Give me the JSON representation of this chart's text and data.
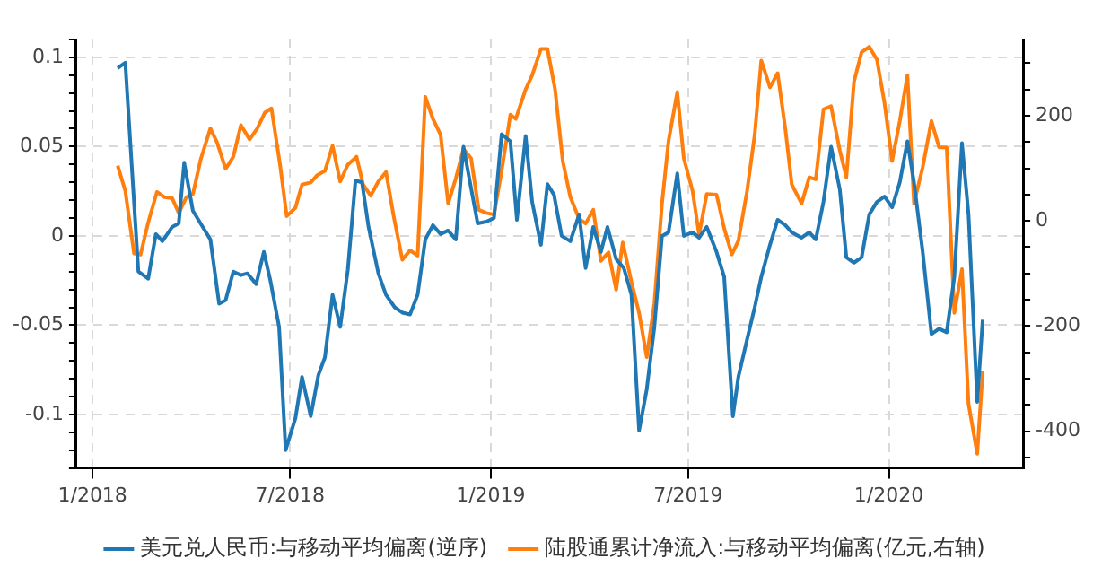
{
  "chart_data": {
    "type": "line",
    "line_style": "solid",
    "grid": true,
    "legend": "bottom",
    "xlim": [
      "2017-12-17",
      "2020-05-03"
    ],
    "xticks": [
      {
        "value": "2018-01-01",
        "label": "1/2018"
      },
      {
        "value": "2018-07-01",
        "label": "7/2018"
      },
      {
        "value": "2019-01-01",
        "label": "1/2019"
      },
      {
        "value": "2019-07-01",
        "label": "7/2019"
      },
      {
        "value": "2020-01-01",
        "label": "1/2020"
      }
    ],
    "ylim": [
      -0.13,
      0.11
    ],
    "yticks": [
      {
        "value": -0.13,
        "label": null
      },
      {
        "value": -0.12,
        "label": null
      },
      {
        "value": -0.11,
        "label": null
      },
      -0.1,
      {
        "value": -0.09,
        "label": null
      },
      {
        "value": -0.08,
        "label": null
      },
      {
        "value": -0.07,
        "label": null
      },
      {
        "value": -0.06,
        "label": null
      },
      -0.05,
      {
        "value": -0.04,
        "label": null
      },
      {
        "value": -0.03,
        "label": null
      },
      {
        "value": -0.02,
        "label": null
      },
      {
        "value": -0.01,
        "label": null
      },
      0,
      {
        "value": 0.01,
        "label": null
      },
      {
        "value": 0.02,
        "label": null
      },
      {
        "value": 0.03,
        "label": null
      },
      {
        "value": 0.04,
        "label": null
      },
      0.05,
      {
        "value": 0.06,
        "label": null
      },
      {
        "value": 0.07,
        "label": null
      },
      {
        "value": 0.08,
        "label": null
      },
      {
        "value": 0.09,
        "label": null
      },
      0.1,
      {
        "value": 0.11,
        "label": null
      }
    ],
    "y2lim": [
      -470,
      345
    ],
    "y2ticks": [
      {
        "value": -450,
        "label": null
      },
      -400,
      {
        "value": -350,
        "label": null
      },
      {
        "value": -300,
        "label": null
      },
      {
        "value": -250,
        "label": null
      },
      -200,
      {
        "value": -150,
        "label": null
      },
      {
        "value": -100,
        "label": null
      },
      {
        "value": -50,
        "label": null
      },
      0,
      {
        "value": 50,
        "label": null
      },
      {
        "value": 100,
        "label": null
      },
      {
        "value": 150,
        "label": null
      },
      200,
      {
        "value": 250,
        "label": null
      },
      {
        "value": 300,
        "label": null
      }
    ],
    "series": [
      {
        "name": "美元兑人民币:与移动平均偏离(逆序)",
        "color": "#1f77b4",
        "x": [
          "2018-01-24",
          "2018-01-31",
          "2018-02-12",
          "2018-02-21",
          "2018-02-28",
          "2018-03-06",
          "2018-03-15",
          "2018-03-21",
          "2018-03-26",
          "2018-04-03",
          "2018-04-12",
          "2018-04-19",
          "2018-04-27",
          "2018-05-03",
          "2018-05-10",
          "2018-05-17",
          "2018-05-23",
          "2018-05-31",
          "2018-06-07",
          "2018-06-13",
          "2018-06-21",
          "2018-06-27",
          "2018-07-06",
          "2018-07-12",
          "2018-07-20",
          "2018-07-27",
          "2018-08-02",
          "2018-08-09",
          "2018-08-16",
          "2018-08-23",
          "2018-08-30",
          "2018-09-05",
          "2018-09-11",
          "2018-09-20",
          "2018-09-27",
          "2018-10-05",
          "2018-10-12",
          "2018-10-19",
          "2018-10-26",
          "2018-11-02",
          "2018-11-09",
          "2018-11-16",
          "2018-11-23",
          "2018-11-30",
          "2018-12-07",
          "2018-12-13",
          "2018-12-20",
          "2018-12-28",
          "2019-01-04",
          "2019-01-11",
          "2019-01-19",
          "2019-01-25",
          "2019-02-02",
          "2019-02-08",
          "2019-02-16",
          "2019-02-22",
          "2019-02-28",
          "2019-03-07",
          "2019-03-15",
          "2019-03-23",
          "2019-03-29",
          "2019-04-05",
          "2019-04-12",
          "2019-04-18",
          "2019-04-26",
          "2019-05-03",
          "2019-05-10",
          "2019-05-17",
          "2019-05-24",
          "2019-05-31",
          "2019-06-07",
          "2019-06-13",
          "2019-06-21",
          "2019-06-27",
          "2019-07-05",
          "2019-07-11",
          "2019-07-18",
          "2019-07-27",
          "2019-08-03",
          "2019-08-11",
          "2019-08-16",
          "2019-08-24",
          "2019-08-31",
          "2019-09-06",
          "2019-09-14",
          "2019-09-21",
          "2019-09-28",
          "2019-10-04",
          "2019-10-13",
          "2019-10-20",
          "2019-10-26",
          "2019-11-02",
          "2019-11-09",
          "2019-11-17",
          "2019-11-23",
          "2019-11-30",
          "2019-12-07",
          "2019-12-14",
          "2019-12-21",
          "2019-12-28",
          "2020-01-04",
          "2020-01-11",
          "2020-01-18",
          "2020-01-24",
          "2020-02-01",
          "2020-02-09",
          "2020-02-16",
          "2020-02-23",
          "2020-03-01",
          "2020-03-08",
          "2020-03-14",
          "2020-03-22",
          "2020-03-27"
        ],
        "values": [
          0.094,
          0.097,
          -0.02,
          -0.024,
          0.001,
          -0.003,
          0.005,
          0.007,
          0.041,
          0.014,
          0.005,
          -0.002,
          -0.038,
          -0.036,
          -0.02,
          -0.022,
          -0.021,
          -0.027,
          -0.009,
          -0.025,
          -0.051,
          -0.12,
          -0.102,
          -0.079,
          -0.101,
          -0.078,
          -0.068,
          -0.033,
          -0.051,
          -0.019,
          0.031,
          0.03,
          0.005,
          -0.021,
          -0.033,
          -0.04,
          -0.043,
          -0.044,
          -0.033,
          -0.002,
          0.006,
          0.001,
          0.003,
          -0.002,
          0.05,
          0.03,
          0.007,
          0.008,
          0.01,
          0.057,
          0.053,
          0.009,
          0.056,
          0.019,
          -0.005,
          0.029,
          0.023,
          0.0,
          -0.003,
          0.012,
          -0.018,
          0.005,
          -0.009,
          0.005,
          -0.013,
          -0.018,
          -0.033,
          -0.109,
          -0.086,
          -0.051,
          0.0,
          0.002,
          0.035,
          0.0,
          0.002,
          -0.001,
          0.005,
          -0.009,
          -0.023,
          -0.101,
          -0.079,
          -0.058,
          -0.04,
          -0.023,
          -0.005,
          0.009,
          0.006,
          0.002,
          -0.001,
          0.002,
          -0.002,
          0.019,
          0.05,
          0.026,
          -0.012,
          -0.015,
          -0.012,
          0.012,
          0.019,
          0.022,
          0.016,
          0.03,
          0.053,
          0.03,
          -0.009,
          -0.055,
          -0.052,
          -0.054,
          -0.023,
          0.052,
          0.012,
          -0.093,
          -0.047
        ]
      },
      {
        "name": "陆股通累计净流入:与移动平均偏离(亿元,右轴)",
        "color": "#ff7f0e",
        "axis": "y2",
        "x": [
          "2018-01-24",
          "2018-01-31",
          "2018-02-08",
          "2018-02-14",
          "2018-02-21",
          "2018-03-01",
          "2018-03-08",
          "2018-03-15",
          "2018-03-21",
          "2018-03-28",
          "2018-04-03",
          "2018-04-10",
          "2018-04-19",
          "2018-04-25",
          "2018-05-03",
          "2018-05-10",
          "2018-05-17",
          "2018-05-25",
          "2018-06-01",
          "2018-06-08",
          "2018-06-14",
          "2018-06-22",
          "2018-06-28",
          "2018-07-06",
          "2018-07-12",
          "2018-07-20",
          "2018-07-26",
          "2018-08-02",
          "2018-08-09",
          "2018-08-16",
          "2018-08-23",
          "2018-08-31",
          "2018-09-06",
          "2018-09-13",
          "2018-09-20",
          "2018-09-27",
          "2018-10-04",
          "2018-10-12",
          "2018-10-19",
          "2018-10-26",
          "2018-11-02",
          "2018-11-09",
          "2018-11-16",
          "2018-11-23",
          "2018-11-30",
          "2018-12-07",
          "2018-12-14",
          "2018-12-21",
          "2018-12-28",
          "2019-01-04",
          "2019-01-11",
          "2019-01-19",
          "2019-01-24",
          "2019-02-02",
          "2019-02-08",
          "2019-02-16",
          "2019-02-22",
          "2019-03-01",
          "2019-03-08",
          "2019-03-15",
          "2019-03-23",
          "2019-03-29",
          "2019-04-05",
          "2019-04-12",
          "2019-04-19",
          "2019-04-26",
          "2019-05-02",
          "2019-05-10",
          "2019-05-17",
          "2019-05-24",
          "2019-05-31",
          "2019-06-07",
          "2019-06-13",
          "2019-06-21",
          "2019-06-27",
          "2019-07-05",
          "2019-07-11",
          "2019-07-18",
          "2019-07-27",
          "2019-08-03",
          "2019-08-10",
          "2019-08-16",
          "2019-08-24",
          "2019-08-31",
          "2019-09-06",
          "2019-09-14",
          "2019-09-21",
          "2019-09-28",
          "2019-10-04",
          "2019-10-13",
          "2019-10-20",
          "2019-10-26",
          "2019-11-02",
          "2019-11-09",
          "2019-11-17",
          "2019-11-23",
          "2019-11-30",
          "2019-12-07",
          "2019-12-14",
          "2019-12-21",
          "2019-12-28",
          "2020-01-04",
          "2020-01-11",
          "2020-01-18",
          "2020-01-24",
          "2020-02-01",
          "2020-02-09",
          "2020-02-16",
          "2020-02-23",
          "2020-03-01",
          "2020-03-08",
          "2020-03-14",
          "2020-03-22",
          "2020-03-27"
        ],
        "values": [
          105,
          57,
          -62,
          -64,
          -3,
          55,
          45,
          43,
          15,
          45,
          51,
          116,
          176,
          150,
          99,
          122,
          182,
          155,
          176,
          206,
          214,
          105,
          9,
          25,
          69,
          73,
          87,
          95,
          143,
          75,
          107,
          122,
          69,
          48,
          75,
          93,
          9,
          -74,
          -56,
          -66,
          236,
          194,
          164,
          33,
          81,
          137,
          119,
          21,
          15,
          12,
          95,
          202,
          194,
          250,
          277,
          327,
          327,
          250,
          114,
          45,
          4,
          -5,
          21,
          -76,
          -60,
          -131,
          -41,
          -116,
          -175,
          -259,
          -157,
          33,
          152,
          245,
          119,
          57,
          -26,
          51,
          50,
          -14,
          -64,
          -38,
          57,
          164,
          305,
          254,
          281,
          176,
          69,
          33,
          83,
          79,
          212,
          218,
          134,
          83,
          265,
          321,
          331,
          307,
          224,
          114,
          190,
          277,
          33,
          102,
          190,
          140,
          140,
          -175,
          -92,
          -348,
          -443,
          -286
        ]
      }
    ]
  }
}
